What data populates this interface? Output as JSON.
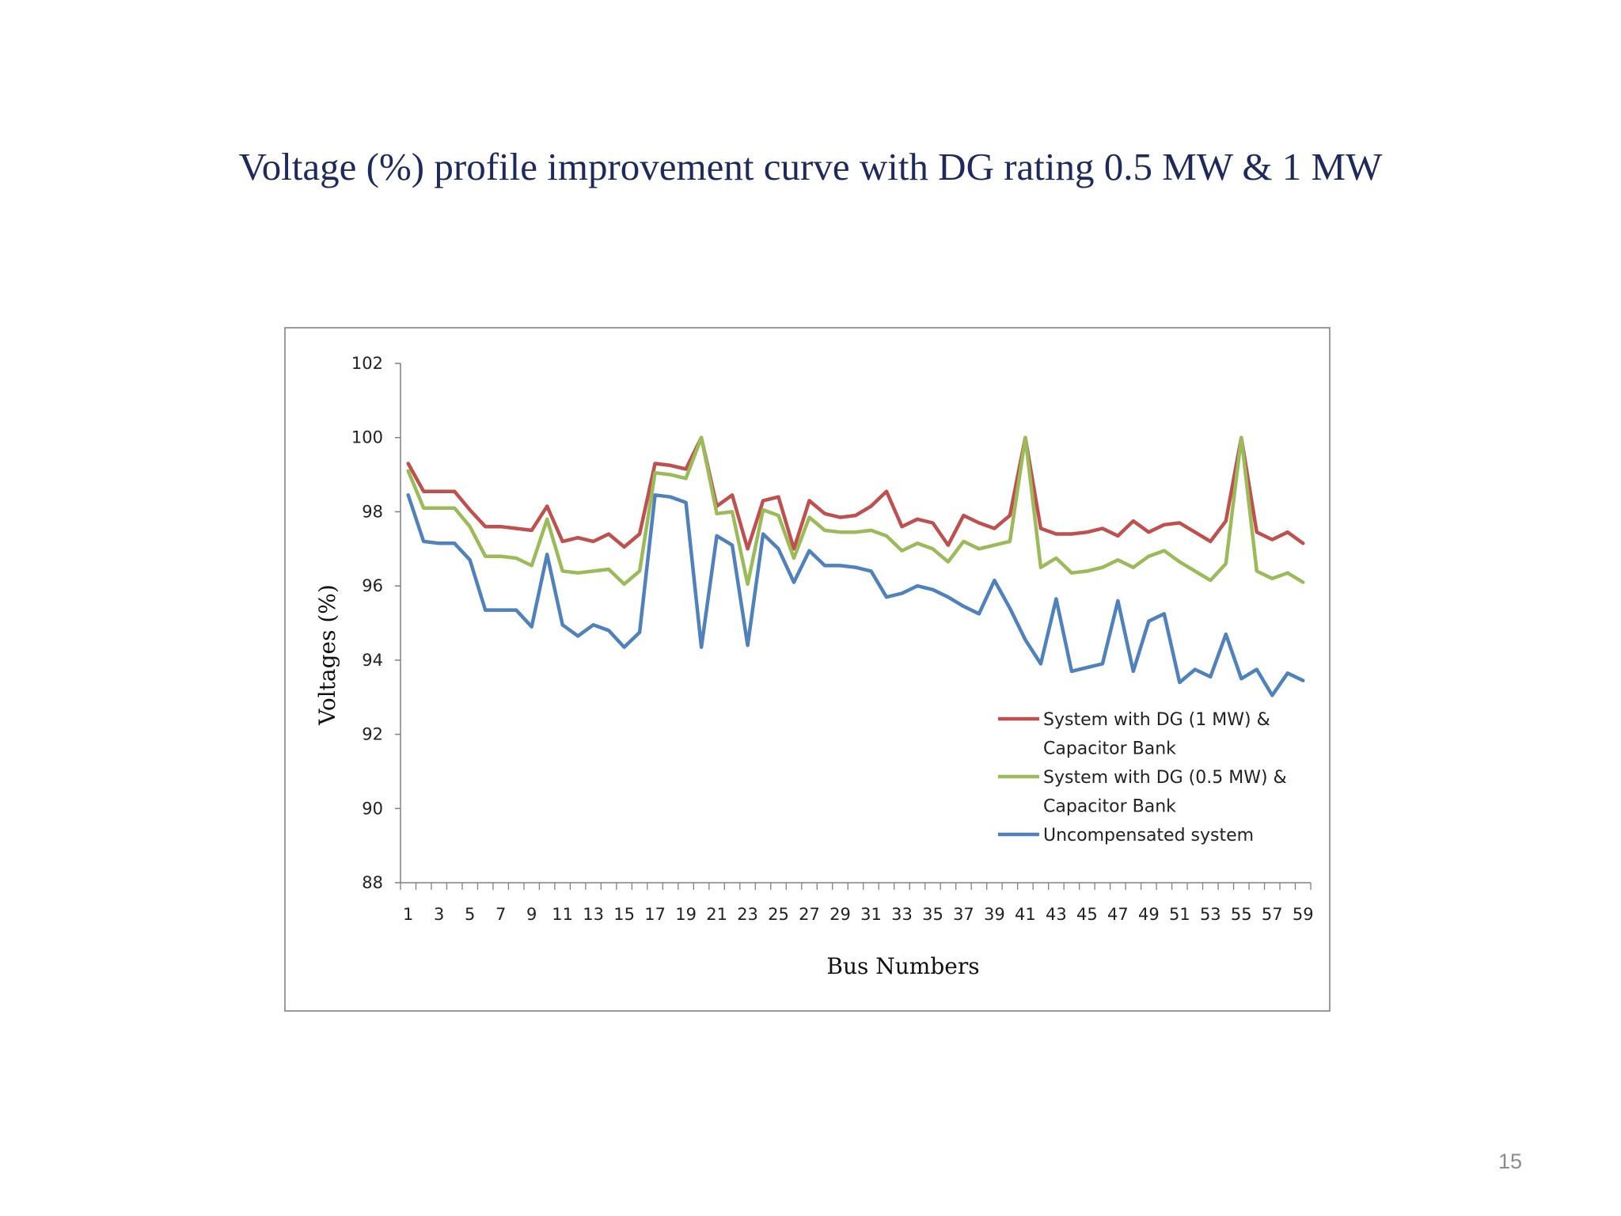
{
  "slide": {
    "title": "Voltage (%) profile improvement curve with DG rating 0.5 MW & 1 MW",
    "page_number": "15"
  },
  "chart_data": {
    "type": "line",
    "title": "",
    "xlabel": "Bus Numbers",
    "ylabel": "Voltages (%)",
    "ylim": [
      88,
      102
    ],
    "yticks": [
      88,
      90,
      92,
      94,
      96,
      98,
      100,
      102
    ],
    "xlim": [
      1,
      59
    ],
    "x_tick_labels": [
      "1",
      "3",
      "5",
      "7",
      "9",
      "11",
      "13",
      "15",
      "17",
      "19",
      "21",
      "23",
      "25",
      "27",
      "29",
      "31",
      "33",
      "35",
      "37",
      "39",
      "41",
      "43",
      "45",
      "47",
      "49",
      "51",
      "53",
      "55",
      "57",
      "59"
    ],
    "grid": false,
    "legend_position": "bottom-right",
    "x": [
      1,
      2,
      3,
      4,
      5,
      6,
      7,
      8,
      9,
      10,
      11,
      12,
      13,
      14,
      15,
      16,
      17,
      18,
      19,
      20,
      21,
      22,
      23,
      24,
      25,
      26,
      27,
      28,
      29,
      30,
      31,
      32,
      33,
      34,
      35,
      36,
      37,
      38,
      39,
      40,
      41,
      42,
      43,
      44,
      45,
      46,
      47,
      48,
      49,
      50,
      51,
      52,
      53,
      54,
      55,
      56,
      57,
      58,
      59
    ],
    "series": [
      {
        "name": "System with DG (1 MW) & Capacitor Bank",
        "legend_lines": [
          "System with DG (1 MW) &",
          "Capacitor Bank"
        ],
        "color": "#c0504d",
        "values": [
          99.3,
          98.55,
          98.55,
          98.55,
          98.05,
          97.6,
          97.6,
          97.55,
          97.5,
          98.15,
          97.2,
          97.3,
          97.2,
          97.4,
          97.05,
          97.4,
          99.3,
          99.25,
          99.15,
          100.0,
          98.15,
          98.45,
          97.0,
          98.3,
          98.4,
          97.0,
          98.3,
          97.95,
          97.85,
          97.9,
          98.15,
          98.55,
          97.6,
          97.8,
          97.7,
          97.1,
          97.9,
          97.7,
          97.55,
          97.9,
          100.0,
          97.55,
          97.4,
          97.4,
          97.45,
          97.55,
          97.35,
          97.75,
          97.45,
          97.65,
          97.7,
          97.45,
          97.2,
          97.75,
          100.0,
          97.45,
          97.25,
          97.45,
          97.15
        ]
      },
      {
        "name": "System with DG (0.5 MW) & Capacitor Bank",
        "legend_lines": [
          "System with DG (0.5 MW) &",
          "Capacitor Bank"
        ],
        "color": "#9bbb59",
        "values": [
          99.1,
          98.1,
          98.1,
          98.1,
          97.6,
          96.8,
          96.8,
          96.75,
          96.55,
          97.8,
          96.4,
          96.35,
          96.4,
          96.45,
          96.05,
          96.4,
          99.05,
          99.0,
          98.9,
          100.0,
          97.95,
          98.0,
          96.05,
          98.05,
          97.9,
          96.75,
          97.85,
          97.5,
          97.45,
          97.45,
          97.5,
          97.35,
          96.95,
          97.15,
          97.0,
          96.65,
          97.2,
          97.0,
          97.1,
          97.2,
          100.0,
          96.5,
          96.75,
          96.35,
          96.4,
          96.5,
          96.7,
          96.5,
          96.8,
          96.95,
          96.65,
          96.4,
          96.15,
          96.6,
          100.0,
          96.4,
          96.2,
          96.35,
          96.1
        ]
      },
      {
        "name": "Uncompensated system",
        "legend_lines": [
          "Uncompensated system"
        ],
        "color": "#4f81bd",
        "values": [
          98.45,
          97.2,
          97.15,
          97.15,
          96.7,
          95.35,
          95.35,
          95.35,
          94.9,
          96.85,
          94.95,
          94.65,
          94.95,
          94.8,
          94.35,
          94.75,
          98.45,
          98.4,
          98.25,
          94.35,
          97.35,
          97.1,
          94.4,
          97.4,
          97.0,
          96.1,
          96.95,
          96.55,
          96.55,
          96.5,
          96.4,
          95.7,
          95.8,
          96.0,
          95.9,
          95.7,
          95.45,
          95.25,
          96.15,
          95.4,
          94.55,
          93.9,
          95.65,
          93.7,
          93.8,
          93.9,
          95.6,
          93.7,
          95.05,
          95.25,
          93.4,
          93.75,
          93.55,
          94.7,
          93.5,
          93.75,
          93.05,
          93.65,
          93.45
        ]
      }
    ]
  }
}
